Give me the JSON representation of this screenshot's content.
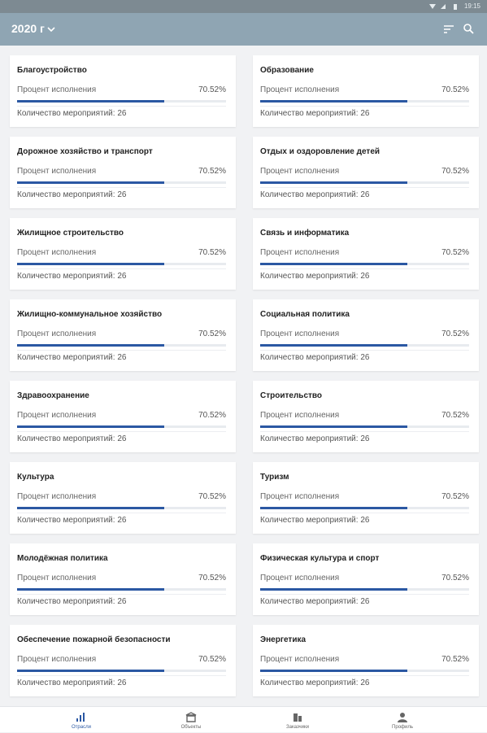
{
  "status_bar": {
    "time": "19:15"
  },
  "header": {
    "year": "2020 г"
  },
  "cards": [
    {
      "title": "Благоустройство",
      "metric_label": "Процент исполнения",
      "percent": 70.52,
      "percent_label": "70.52%",
      "count": "Количество мероприятий: 26"
    },
    {
      "title": "Образование",
      "metric_label": "Процент исполнения",
      "percent": 70.52,
      "percent_label": "70.52%",
      "count": "Количество мероприятий: 26"
    },
    {
      "title": "Дорожное хозяйство и транспорт",
      "metric_label": "Процент исполнения",
      "percent": 70.52,
      "percent_label": "70.52%",
      "count": "Количество мероприятий: 26"
    },
    {
      "title": "Отдых и оздоровление детей",
      "metric_label": "Процент исполнения",
      "percent": 70.52,
      "percent_label": "70.52%",
      "count": "Количество мероприятий: 26"
    },
    {
      "title": "Жилищное строительство",
      "metric_label": "Процент исполнения",
      "percent": 70.52,
      "percent_label": "70.52%",
      "count": "Количество мероприятий: 26"
    },
    {
      "title": "Связь и информатика",
      "metric_label": "Процент исполнения",
      "percent": 70.52,
      "percent_label": "70.52%",
      "count": "Количество мероприятий: 26"
    },
    {
      "title": "Жилищно-коммунальное хозяйство",
      "metric_label": "Процент исполнения",
      "percent": 70.52,
      "percent_label": "70.52%",
      "count": "Количество мероприятий: 26"
    },
    {
      "title": "Социальная политика",
      "metric_label": "Процент исполнения",
      "percent": 70.52,
      "percent_label": "70.52%",
      "count": "Количество мероприятий: 26"
    },
    {
      "title": "Здравоохранение",
      "metric_label": "Процент исполнения",
      "percent": 70.52,
      "percent_label": "70.52%",
      "count": "Количество мероприятий: 26"
    },
    {
      "title": "Строительство",
      "metric_label": "Процент исполнения",
      "percent": 70.52,
      "percent_label": "70.52%",
      "count": "Количество мероприятий: 26"
    },
    {
      "title": "Культура",
      "metric_label": "Процент исполнения",
      "percent": 70.52,
      "percent_label": "70.52%",
      "count": "Количество мероприятий: 26"
    },
    {
      "title": "Туризм",
      "metric_label": "Процент исполнения",
      "percent": 70.52,
      "percent_label": "70.52%",
      "count": "Количество мероприятий: 26"
    },
    {
      "title": "Молодёжная политика",
      "metric_label": "Процент исполнения",
      "percent": 70.52,
      "percent_label": "70.52%",
      "count": "Количество мероприятий: 26"
    },
    {
      "title": "Физическая культура и спорт",
      "metric_label": "Процент исполнения",
      "percent": 70.52,
      "percent_label": "70.52%",
      "count": "Количество мероприятий: 26"
    },
    {
      "title": "Обеспечение пожарной безопасности",
      "metric_label": "Процент исполнения",
      "percent": 70.52,
      "percent_label": "70.52%",
      "count": "Количество мероприятий: 26"
    },
    {
      "title": "Энергетика",
      "metric_label": "Процент исполнения",
      "percent": 70.52,
      "percent_label": "70.52%",
      "count": "Количество мероприятий: 26"
    }
  ],
  "nav": [
    {
      "label": "Отрасли",
      "active": true
    },
    {
      "label": "Объекты",
      "active": false
    },
    {
      "label": "Заказчики",
      "active": false
    },
    {
      "label": "Профиль",
      "active": false
    }
  ]
}
